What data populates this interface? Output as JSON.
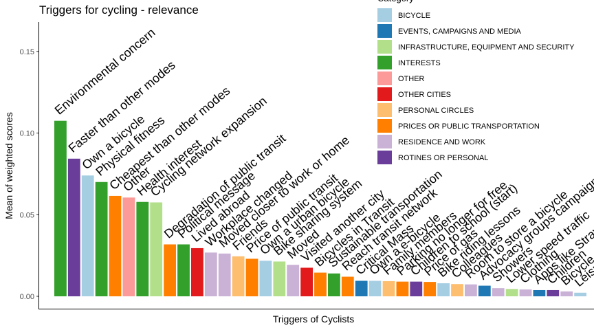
{
  "chart_data": {
    "type": "bar",
    "title": "Triggers for cycling - relevance",
    "xlabel": "Triggers of Cyclists",
    "ylabel": "Mean of weighted scores",
    "ylim": [
      0,
      0.168
    ],
    "yticks": [
      "0.00",
      "0.05",
      "0.10",
      "0.15"
    ],
    "ytick_values": [
      0,
      0.05,
      0.1,
      0.15
    ],
    "grid": false,
    "legend": {
      "title": "Category",
      "placement": "top-right",
      "entries": [
        {
          "label": "BICYCLE",
          "color": "#a6cee3"
        },
        {
          "label": "EVENTS, CAMPAIGNS AND MEDIA",
          "color": "#1f78b4"
        },
        {
          "label": "INFRASTRUCTURE, EQUIPMENT AND SECURITY",
          "color": "#b2df8a"
        },
        {
          "label": "INTERESTS",
          "color": "#33a02c"
        },
        {
          "label": "OTHER",
          "color": "#fb9a99"
        },
        {
          "label": "OTHER CITIES",
          "color": "#e31a1c"
        },
        {
          "label": "PERSONAL CIRCLES",
          "color": "#fdbf6f"
        },
        {
          "label": "PRICES OR PUBLIC TRANSPORTATION",
          "color": "#ff7f00"
        },
        {
          "label": "RESIDENCE AND WORK",
          "color": "#cab2d6"
        },
        {
          "label": "ROTINES OR PERSONAL",
          "color": "#6a3d9a"
        }
      ]
    },
    "bars": [
      {
        "label": "Environmental concern",
        "value": 0.1075,
        "category": "INTERESTS"
      },
      {
        "label": "Faster than other modes",
        "value": 0.0843,
        "category": "ROTINES OR PERSONAL"
      },
      {
        "label": "Own a bicycle",
        "value": 0.074,
        "category": "BICYCLE"
      },
      {
        "label": "Physical fitness",
        "value": 0.07,
        "category": "INTERESTS"
      },
      {
        "label": "Cheapest than other modes",
        "value": 0.0615,
        "category": "PRICES OR PUBLIC TRANSPORTATION"
      },
      {
        "label": "Other",
        "value": 0.0605,
        "category": "OTHER"
      },
      {
        "label": "Health interest",
        "value": 0.0578,
        "category": "INTERESTS"
      },
      {
        "label": "Cycling network expansion",
        "value": 0.0575,
        "category": "INFRASTRUCTURE, EQUIPMENT AND SECURITY"
      },
      {
        "label": "Degradation of public transit",
        "value": 0.0318,
        "category": "PRICES OR PUBLIC TRANSPORTATION"
      },
      {
        "label": "Political message",
        "value": 0.0318,
        "category": "INTERESTS"
      },
      {
        "label": "Lived abroad",
        "value": 0.0295,
        "category": "OTHER CITIES"
      },
      {
        "label": "Workplace changed",
        "value": 0.0268,
        "category": "RESIDENCE AND WORK"
      },
      {
        "label": "Moved closer to work or home",
        "value": 0.0262,
        "category": "RESIDENCE AND WORK"
      },
      {
        "label": "Friends",
        "value": 0.0245,
        "category": "PERSONAL CIRCLES"
      },
      {
        "label": "Price of public transit",
        "value": 0.023,
        "category": "PRICES OR PUBLIC TRANSPORTATION"
      },
      {
        "label": "Own a urban bicycle",
        "value": 0.0218,
        "category": "BICYCLE"
      },
      {
        "label": "Bike sharing system",
        "value": 0.0213,
        "category": "INFRASTRUCTURE, EQUIPMENT AND SECURITY"
      },
      {
        "label": "Moved",
        "value": 0.0193,
        "category": "RESIDENCE AND WORK"
      },
      {
        "label": "Visited another city",
        "value": 0.0175,
        "category": "OTHER CITIES"
      },
      {
        "label": "Bicycles in Transit",
        "value": 0.0145,
        "category": "PRICES OR PUBLIC TRANSPORTATION"
      },
      {
        "label": "Sustainable transportation",
        "value": 0.014,
        "category": "INTERESTS"
      },
      {
        "label": "Reach transit network",
        "value": 0.012,
        "category": "PRICES OR PUBLIC TRANSPORTATION"
      },
      {
        "label": "Critical Mass",
        "value": 0.0095,
        "category": "EVENTS, CAMPAIGNS AND MEDIA"
      },
      {
        "label": "Own a e-bicycle",
        "value": 0.0095,
        "category": "BICYCLE"
      },
      {
        "label": "Family members",
        "value": 0.0093,
        "category": "PERSONAL CIRCLES"
      },
      {
        "label": "Parking no longer for free",
        "value": 0.009,
        "category": "PRICES OR PUBLIC TRANSPORTATION"
      },
      {
        "label": "Children to school (start)",
        "value": 0.009,
        "category": "ROTINES OR PERSONAL"
      },
      {
        "label": "Price of gas",
        "value": 0.0088,
        "category": "PRICES OR PUBLIC TRANSPORTATION"
      },
      {
        "label": "Bike riding lessons",
        "value": 0.008,
        "category": "BICYCLE"
      },
      {
        "label": "Colleagues",
        "value": 0.0075,
        "category": "PERSONAL CIRCLES"
      },
      {
        "label": "Room to store a bicycle",
        "value": 0.0073,
        "category": "RESIDENCE AND WORK"
      },
      {
        "label": "Advocacy groups campaigns",
        "value": 0.0065,
        "category": "EVENTS, CAMPAIGNS AND MEDIA"
      },
      {
        "label": "Showers",
        "value": 0.005,
        "category": "RESIDENCE AND WORK"
      },
      {
        "label": "Lower speed traffic",
        "value": 0.0045,
        "category": "INFRASTRUCTURE, EQUIPMENT AND SECURITY"
      },
      {
        "label": "Clothing",
        "value": 0.0042,
        "category": "RESIDENCE AND WORK"
      },
      {
        "label": "Apps like Strava",
        "value": 0.0038,
        "category": "EVENTS, CAMPAIGNS AND MEDIA"
      },
      {
        "label": "Children",
        "value": 0.0038,
        "category": "ROTINES OR PERSONAL"
      },
      {
        "label": "Bicycle",
        "value": 0.003,
        "category": "RESIDENCE AND WORK"
      },
      {
        "label": "Leisure",
        "value": 0.0022,
        "category": "BICYCLE"
      }
    ]
  }
}
